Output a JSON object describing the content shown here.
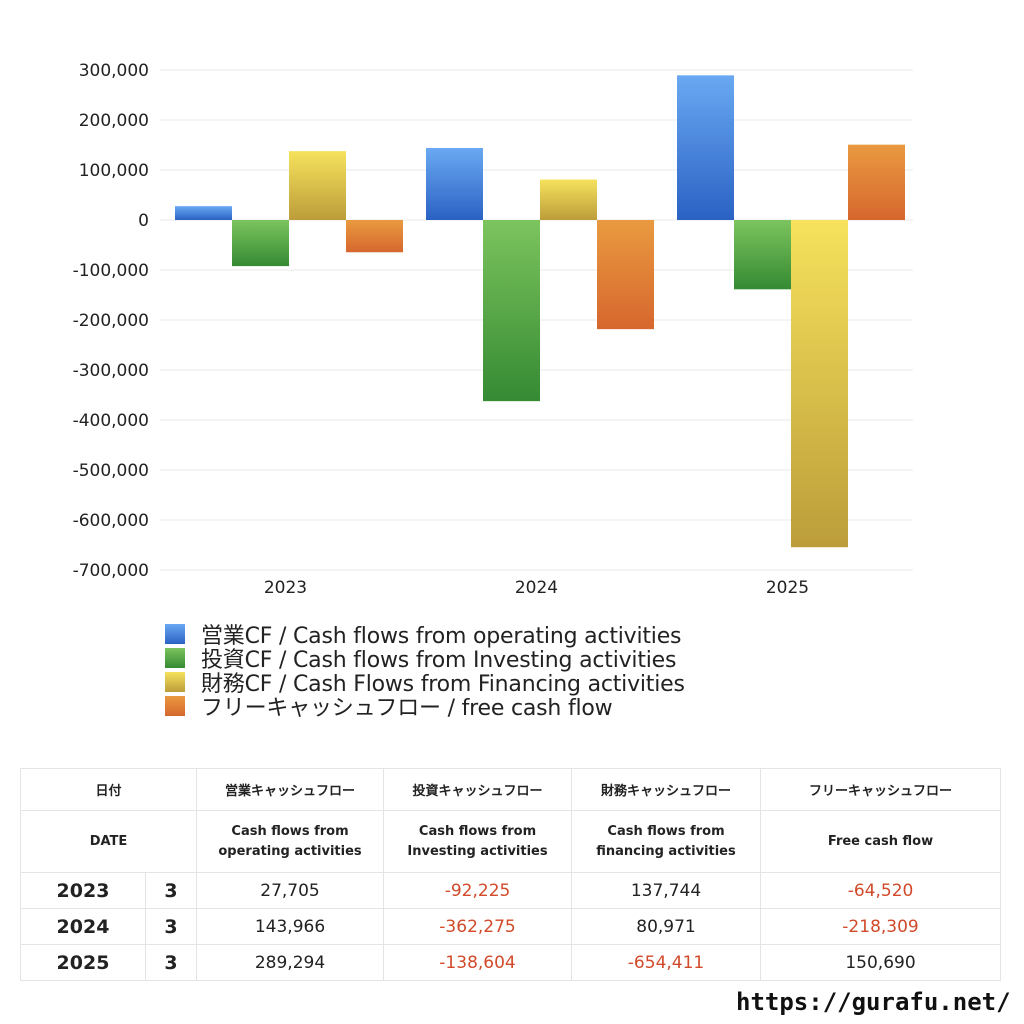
{
  "chart_data": {
    "type": "bar",
    "categories": [
      "2023",
      "2024",
      "2025"
    ],
    "series": [
      {
        "name": "営業CF / Cash flows from operating activities",
        "values": [
          27705,
          143966,
          289294
        ],
        "color_top": "#6aa8f2",
        "color_bottom": "#2a62c4"
      },
      {
        "name": "投資CF / Cash flows from Investing activities",
        "values": [
          -92225,
          -362275,
          -138604
        ],
        "color_top": "#7cc45e",
        "color_bottom": "#358a33"
      },
      {
        "name": "財務CF / Cash Flows from Financing activities",
        "values": [
          137744,
          80971,
          -654411
        ],
        "color_top": "#f6e25c",
        "color_bottom": "#bc9d3a"
      },
      {
        "name": "フリーキャッシュフロー / free cash flow",
        "values": [
          -64520,
          -218309,
          150690
        ],
        "color_top": "#e99a40",
        "color_bottom": "#d6672e"
      }
    ],
    "ylim": [
      -700000,
      300000
    ],
    "yticks": [
      "300,000",
      "200,000",
      "100,000",
      "0",
      "-100,000",
      "-200,000",
      "-300,000",
      "-400,000",
      "-500,000",
      "-600,000",
      "-700,000"
    ],
    "ytick_values": [
      300000,
      200000,
      100000,
      0,
      -100000,
      -200000,
      -300000,
      -400000,
      -500000,
      -600000,
      -700000
    ],
    "grid": true,
    "legend_position": "bottom"
  },
  "table": {
    "header_jp": {
      "date": "日付",
      "operating": "営業キャッシュフロー",
      "investing": "投資キャッシュフロー",
      "financing": "財務キャッシュフロー",
      "free": "フリーキャッシュフロー"
    },
    "header_en": {
      "date": "DATE",
      "operating_1": "Cash flows from",
      "operating_2": "operating activities",
      "investing_1": "Cash flows from",
      "investing_2": "Investing activities",
      "financing_1": "Cash flows from",
      "financing_2": "financing activities",
      "free": "Free cash flow"
    },
    "rows": [
      {
        "year": "2023",
        "month": "3",
        "operating": "27,705",
        "investing": "-92,225",
        "financing": "137,744",
        "free": "-64,520"
      },
      {
        "year": "2024",
        "month": "3",
        "operating": "143,966",
        "investing": "-362,275",
        "financing": "80,971",
        "free": "-218,309"
      },
      {
        "year": "2025",
        "month": "3",
        "operating": "289,294",
        "investing": "-138,604",
        "financing": "-654,411",
        "free": "150,690"
      }
    ]
  },
  "footer": {
    "url": "https://gurafu.net/"
  }
}
